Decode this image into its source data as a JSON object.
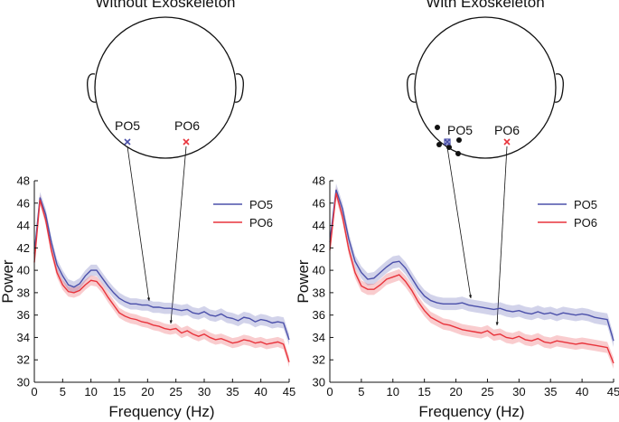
{
  "chart_data": [
    {
      "type": "line",
      "title": "Without Exoskeleton",
      "xlabel": "Frequency (Hz)",
      "ylabel": "Power",
      "x": [
        0,
        1,
        2,
        3,
        4,
        5,
        6,
        7,
        8,
        9,
        10,
        11,
        12,
        13,
        14,
        15,
        16,
        17,
        18,
        19,
        20,
        21,
        22,
        23,
        24,
        25,
        26,
        27,
        28,
        29,
        30,
        31,
        32,
        33,
        34,
        35,
        36,
        37,
        38,
        39,
        40,
        41,
        42,
        43,
        44,
        45
      ],
      "xlim": [
        0,
        45
      ],
      "ylim": [
        30,
        48
      ],
      "xticks": [
        0,
        5,
        10,
        15,
        20,
        25,
        30,
        35,
        40,
        45
      ],
      "yticks": [
        30,
        32,
        34,
        36,
        38,
        40,
        42,
        44,
        46,
        48
      ],
      "legend": "upper right",
      "series": [
        {
          "name": "PO5",
          "color": "#4b50aa",
          "error": 0.5,
          "values": [
            41.5,
            46.5,
            45,
            42.5,
            40.5,
            39.5,
            38.7,
            38.5,
            38.8,
            39.5,
            40,
            40,
            39.3,
            38.6,
            38,
            37.5,
            37.2,
            37,
            37,
            36.9,
            36.9,
            36.7,
            36.7,
            36.6,
            36.6,
            36.5,
            36.4,
            36.5,
            36.2,
            36.1,
            36.3,
            36,
            35.9,
            36.1,
            35.8,
            35.7,
            35.5,
            35.8,
            35.7,
            35.4,
            35.6,
            35.5,
            35.3,
            35.4,
            35.3,
            33.8
          ]
        },
        {
          "name": "PO6",
          "color": "#e8343c",
          "error": 0.45,
          "values": [
            40.7,
            46.3,
            44.5,
            41.8,
            39.8,
            38.7,
            38.1,
            38,
            38.2,
            38.7,
            39.1,
            39,
            38.4,
            37.6,
            36.9,
            36.2,
            35.9,
            35.7,
            35.6,
            35.4,
            35.3,
            35.1,
            35,
            34.8,
            34.7,
            34.8,
            34.4,
            34.6,
            34.3,
            34.1,
            34.3,
            34,
            33.8,
            33.9,
            33.7,
            33.5,
            33.6,
            33.8,
            33.7,
            33.5,
            33.6,
            33.4,
            33.5,
            33.6,
            33.4,
            31.8
          ]
        }
      ]
    },
    {
      "type": "line",
      "title": "With Exoskeleton",
      "xlabel": "Frequency (Hz)",
      "ylabel": "Power",
      "x": [
        0,
        1,
        2,
        3,
        4,
        5,
        6,
        7,
        8,
        9,
        10,
        11,
        12,
        13,
        14,
        15,
        16,
        17,
        18,
        19,
        20,
        21,
        22,
        23,
        24,
        25,
        26,
        27,
        28,
        29,
        30,
        31,
        32,
        33,
        34,
        35,
        36,
        37,
        38,
        39,
        40,
        41,
        42,
        43,
        44,
        45
      ],
      "xlim": [
        0,
        45
      ],
      "ylim": [
        30,
        48
      ],
      "xticks": [
        0,
        5,
        10,
        15,
        20,
        25,
        30,
        35,
        40,
        45
      ],
      "yticks": [
        30,
        32,
        34,
        36,
        38,
        40,
        42,
        44,
        46,
        48
      ],
      "legend": "upper right",
      "series": [
        {
          "name": "PO5",
          "color": "#4b50aa",
          "error": 0.55,
          "values": [
            42.5,
            47.2,
            45.5,
            42.8,
            40.8,
            39.8,
            39.2,
            39.3,
            39.8,
            40.3,
            40.7,
            40.8,
            40.2,
            39.3,
            38.4,
            37.7,
            37.3,
            37.1,
            37,
            37,
            37,
            37.1,
            36.9,
            36.8,
            36.7,
            36.6,
            36.5,
            36.6,
            36.4,
            36.3,
            36.4,
            36.2,
            36.1,
            36.3,
            36.1,
            36.2,
            36,
            36.2,
            36.1,
            36,
            36.1,
            36,
            35.8,
            35.7,
            35.6,
            33.7
          ]
        },
        {
          "name": "PO6",
          "color": "#e8343c",
          "error": 0.5,
          "values": [
            41.8,
            46.9,
            44.8,
            41.9,
            39.8,
            38.6,
            38.3,
            38.3,
            38.7,
            39.2,
            39.4,
            39.6,
            39,
            38.2,
            37.2,
            36.4,
            35.8,
            35.5,
            35.2,
            35.1,
            34.9,
            34.7,
            34.6,
            34.5,
            34.4,
            34.6,
            34.2,
            34.3,
            34,
            33.9,
            34.1,
            33.8,
            33.7,
            33.9,
            33.6,
            33.5,
            33.7,
            33.6,
            33.5,
            33.4,
            33.5,
            33.4,
            33.3,
            33.2,
            33.1,
            31.7
          ]
        }
      ]
    }
  ]
}
